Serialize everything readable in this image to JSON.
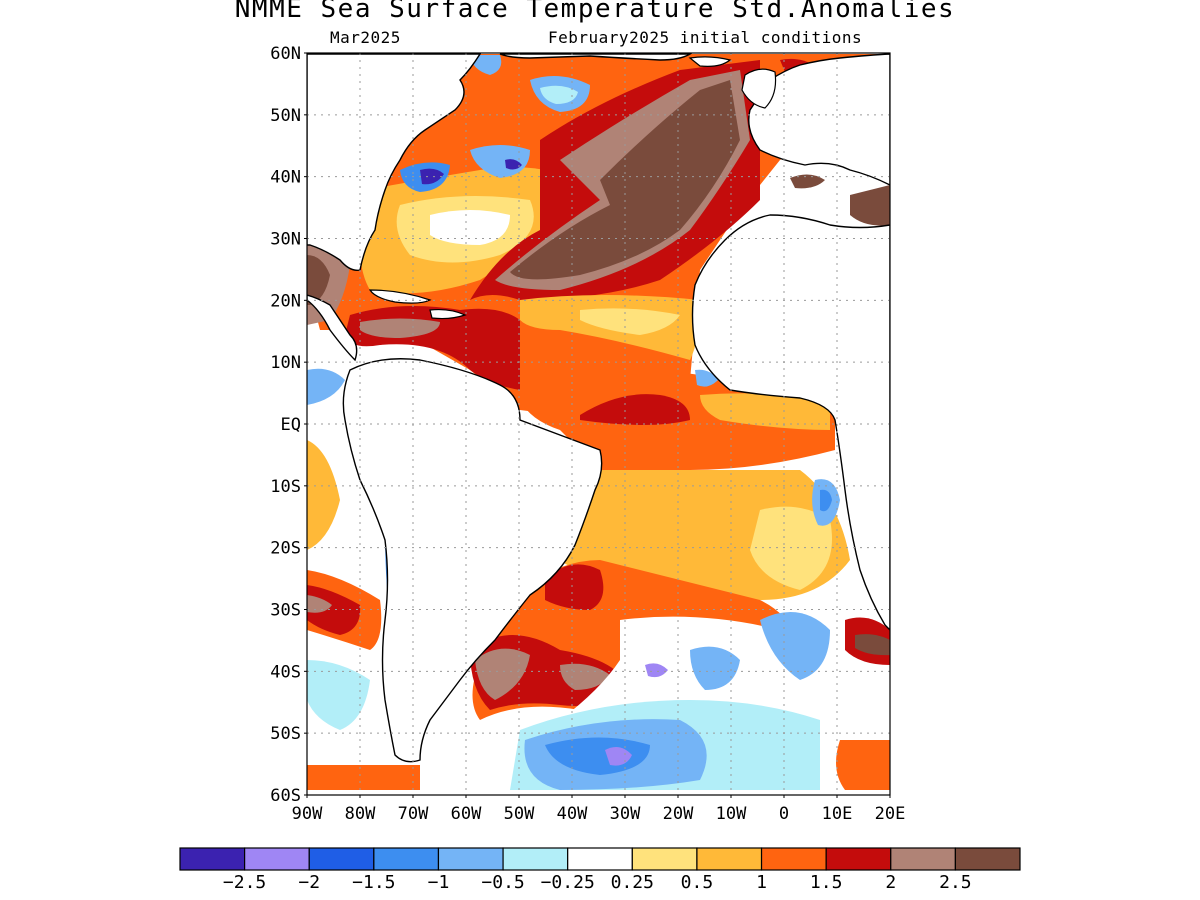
{
  "title": "NMME Sea Surface Temperature Std.Anomalies",
  "subtitle_left": "Mar2025",
  "subtitle_right": "February2025 initial conditions",
  "map": {
    "lon_range": [
      -90,
      20
    ],
    "lat_range": [
      -60,
      60
    ],
    "lat_ticks": [
      {
        "value": 60,
        "label": "60N"
      },
      {
        "value": 50,
        "label": "50N"
      },
      {
        "value": 40,
        "label": "40N"
      },
      {
        "value": 30,
        "label": "30N"
      },
      {
        "value": 20,
        "label": "20N"
      },
      {
        "value": 10,
        "label": "10N"
      },
      {
        "value": 0,
        "label": "EQ"
      },
      {
        "value": -10,
        "label": "10S"
      },
      {
        "value": -20,
        "label": "20S"
      },
      {
        "value": -30,
        "label": "30S"
      },
      {
        "value": -40,
        "label": "40S"
      },
      {
        "value": -50,
        "label": "50S"
      },
      {
        "value": -60,
        "label": "60S"
      }
    ],
    "lon_ticks": [
      {
        "value": -90,
        "label": "90W"
      },
      {
        "value": -80,
        "label": "80W"
      },
      {
        "value": -70,
        "label": "70W"
      },
      {
        "value": -60,
        "label": "60W"
      },
      {
        "value": -50,
        "label": "50W"
      },
      {
        "value": -40,
        "label": "40W"
      },
      {
        "value": -30,
        "label": "30W"
      },
      {
        "value": -20,
        "label": "20W"
      },
      {
        "value": -10,
        "label": "10W"
      },
      {
        "value": 0,
        "label": "0"
      },
      {
        "value": 10,
        "label": "10E"
      },
      {
        "value": 20,
        "label": "20E"
      }
    ],
    "grid": true
  },
  "colorbar": {
    "colors": [
      "#3b22b0",
      "#9f86f4",
      "#1f5ee6",
      "#3d8ef0",
      "#74b4f6",
      "#b2eef8",
      "#ffffff",
      "#ffe27c",
      "#ffb938",
      "#ff6410",
      "#c40c0c",
      "#b08376",
      "#7a4b3c"
    ],
    "labels": [
      "−2.5",
      "−2",
      "−1.5",
      "−1",
      "−0.5",
      "−0.25",
      "0.25",
      "0.5",
      "1",
      "1.5",
      "2",
      "2.5"
    ]
  },
  "colors": {
    "land": "#ffffff",
    "coast": "#000000",
    "anomaly_white": "#ffffff",
    "anomaly_light_blue": "#b2eef8",
    "anomaly_blue": "#74b4f6",
    "anomaly_mid_blue": "#3d8ef0",
    "anomaly_dark_blue": "#1f5ee6",
    "anomaly_lavender": "#9f86f4",
    "anomaly_indigo": "#3b22b0",
    "anomaly_yellow": "#ffe27c",
    "anomaly_light_orange": "#ffb938",
    "anomaly_orange": "#ff6410",
    "anomaly_red": "#c40c0c",
    "anomaly_pinkbrown": "#b08376",
    "anomaly_brown": "#7a4b3c"
  }
}
